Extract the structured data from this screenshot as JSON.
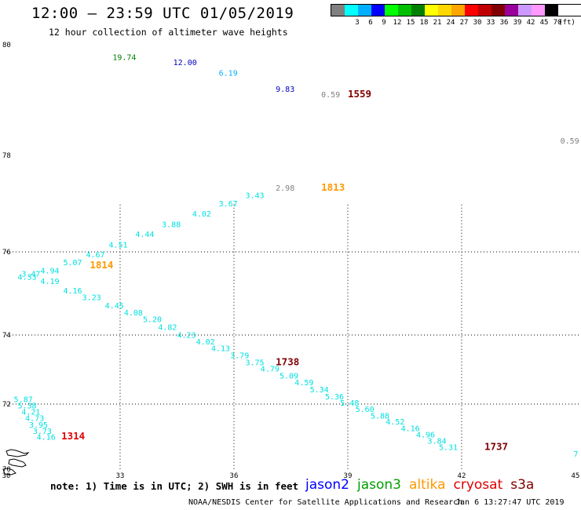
{
  "header": {
    "title": "12:00 – 23:59 UTC 01/05/2019",
    "subtitle": "12 hour collection of altimeter wave heights"
  },
  "legend": {
    "swatches": [
      {
        "color": "#808080",
        "label": ""
      },
      {
        "color": "#00ffff",
        "label": "3"
      },
      {
        "color": "#00b0ff",
        "label": "6"
      },
      {
        "color": "#0000ff",
        "label": "9"
      },
      {
        "color": "#00ff00",
        "label": "12"
      },
      {
        "color": "#00c000",
        "label": "15"
      },
      {
        "color": "#008000",
        "label": "18"
      },
      {
        "color": "#ffff00",
        "label": "21"
      },
      {
        "color": "#ffd700",
        "label": "24"
      },
      {
        "color": "#ffa500",
        "label": "27"
      },
      {
        "color": "#ff0000",
        "label": "30"
      },
      {
        "color": "#c00000",
        "label": "33"
      },
      {
        "color": "#800000",
        "label": "36"
      },
      {
        "color": "#990099",
        "label": "39"
      },
      {
        "color": "#cc99ff",
        "label": "42"
      },
      {
        "color": "#ff99ff",
        "label": "45"
      },
      {
        "color": "#000000",
        "label": "70"
      }
    ],
    "unit": "(ft)"
  },
  "map": {
    "lat_labels": [
      "80",
      "78",
      "76",
      "74",
      "72",
      "70"
    ],
    "lon_labels": [
      "30",
      "33",
      "36",
      "39",
      "42",
      "45"
    ]
  },
  "observations": [
    {
      "v": "19.74",
      "c": "#008000",
      "lat": 79.72,
      "lon": 32.8
    },
    {
      "v": "12.00",
      "c": "#0000c0",
      "lat": 79.63,
      "lon": 34.4
    },
    {
      "v": "6.19",
      "c": "#00b0ff",
      "lat": 79.44,
      "lon": 35.6
    },
    {
      "v": "9.83",
      "c": "#0000c0",
      "lat": 79.15,
      "lon": 37.1
    },
    {
      "v": "0.59",
      "c": "#808080",
      "lat": 79.05,
      "lon": 38.3
    },
    {
      "v": "0.59",
      "c": "#808080",
      "lat": 78.21,
      "lon": 44.6
    },
    {
      "v": "2.98",
      "c": "#808080",
      "lat": 77.27,
      "lon": 37.1
    },
    {
      "v": "3.43",
      "c": "#00e0e0",
      "lat": 77.11,
      "lon": 36.3
    },
    {
      "v": "3.67",
      "c": "#00e0e0",
      "lat": 76.94,
      "lon": 35.6
    },
    {
      "v": "4.02",
      "c": "#00e0e0",
      "lat": 76.73,
      "lon": 34.9
    },
    {
      "v": "3.88",
      "c": "#00e0e0",
      "lat": 76.51,
      "lon": 34.1
    },
    {
      "v": "4.44",
      "c": "#00e0e0",
      "lat": 76.31,
      "lon": 33.4
    },
    {
      "v": "4.51",
      "c": "#00e0e0",
      "lat": 76.09,
      "lon": 32.7
    },
    {
      "v": "4.67",
      "c": "#00e0e0",
      "lat": 75.87,
      "lon": 32.1
    },
    {
      "v": "5.07",
      "c": "#00e0e0",
      "lat": 75.68,
      "lon": 31.5
    },
    {
      "v": "4.94",
      "c": "#00e0e0",
      "lat": 75.48,
      "lon": 30.9
    },
    {
      "v": "3.47",
      "c": "#00e0e0",
      "lat": 75.41,
      "lon": 30.4
    },
    {
      "v": "4.33",
      "c": "#00e0e0",
      "lat": 75.33,
      "lon": 30.3
    },
    {
      "v": "4.19",
      "c": "#00e0e0",
      "lat": 75.23,
      "lon": 30.9
    },
    {
      "v": "4.16",
      "c": "#00e0e0",
      "lat": 75.0,
      "lon": 31.5
    },
    {
      "v": "3.23",
      "c": "#00e0e0",
      "lat": 74.84,
      "lon": 32.0
    },
    {
      "v": "4.45",
      "c": "#00e0e0",
      "lat": 74.64,
      "lon": 32.6
    },
    {
      "v": "4.08",
      "c": "#00e0e0",
      "lat": 74.47,
      "lon": 33.1
    },
    {
      "v": "5.20",
      "c": "#00e0e0",
      "lat": 74.31,
      "lon": 33.6
    },
    {
      "v": "4.82",
      "c": "#00e0e0",
      "lat": 74.12,
      "lon": 34.0
    },
    {
      "v": "4.23",
      "c": "#00e0e0",
      "lat": 73.92,
      "lon": 34.5
    },
    {
      "v": "4.02",
      "c": "#00e0e0",
      "lat": 73.73,
      "lon": 35.0
    },
    {
      "v": "4.13",
      "c": "#00e0e0",
      "lat": 73.53,
      "lon": 35.4
    },
    {
      "v": "3.79",
      "c": "#00e0e0",
      "lat": 73.33,
      "lon": 35.9
    },
    {
      "v": "3.75",
      "c": "#00e0e0",
      "lat": 73.13,
      "lon": 36.3
    },
    {
      "v": "4.79",
      "c": "#00e0e0",
      "lat": 72.94,
      "lon": 36.7
    },
    {
      "v": "5.09",
      "c": "#00e0e0",
      "lat": 72.74,
      "lon": 37.2
    },
    {
      "v": "4.59",
      "c": "#00e0e0",
      "lat": 72.54,
      "lon": 37.6
    },
    {
      "v": "5.34",
      "c": "#00e0e0",
      "lat": 72.34,
      "lon": 38.0
    },
    {
      "v": "5.36",
      "c": "#00e0e0",
      "lat": 72.14,
      "lon": 38.4
    },
    {
      "v": "5.48",
      "c": "#00e0e0",
      "lat": 71.95,
      "lon": 38.8
    },
    {
      "v": "5.60",
      "c": "#00e0e0",
      "lat": 71.76,
      "lon": 39.2
    },
    {
      "v": "5.88",
      "c": "#00e0e0",
      "lat": 71.56,
      "lon": 39.6
    },
    {
      "v": "4.52",
      "c": "#00e0e0",
      "lat": 71.37,
      "lon": 40.0
    },
    {
      "v": "4.16",
      "c": "#00e0e0",
      "lat": 71.17,
      "lon": 40.4
    },
    {
      "v": "4.96",
      "c": "#00e0e0",
      "lat": 70.98,
      "lon": 40.8
    },
    {
      "v": "3.84",
      "c": "#00e0e0",
      "lat": 70.78,
      "lon": 41.1
    },
    {
      "v": "5.31",
      "c": "#00e0e0",
      "lat": 70.59,
      "lon": 41.4
    },
    {
      "v": "7",
      "c": "#00e0e0",
      "lat": 70.38,
      "lon": 44.95
    },
    {
      "v": "5.87",
      "c": "#00e0e0",
      "lat": 72.06,
      "lon": 30.2
    },
    {
      "v": "5.38",
      "c": "#00e0e0",
      "lat": 71.87,
      "lon": 30.3
    },
    {
      "v": "4.21",
      "c": "#00e0e0",
      "lat": 71.68,
      "lon": 30.4
    },
    {
      "v": "4.73",
      "c": "#00e0e0",
      "lat": 71.48,
      "lon": 30.5
    },
    {
      "v": "3.95",
      "c": "#00e0e0",
      "lat": 71.28,
      "lon": 30.6
    },
    {
      "v": "3.73",
      "c": "#00e0e0",
      "lat": 71.09,
      "lon": 30.7
    },
    {
      "v": "4.16",
      "c": "#00e0e0",
      "lat": 70.9,
      "lon": 30.8
    }
  ],
  "track_times": [
    {
      "t": "1559",
      "c": "#800000",
      "lat": 79.05,
      "lon": 39.0
    },
    {
      "t": "1813",
      "c": "#ff9900",
      "lat": 77.27,
      "lon": 38.3
    },
    {
      "t": "1814",
      "c": "#ff9900",
      "lat": 75.6,
      "lon": 32.2
    },
    {
      "t": "1738",
      "c": "#800000",
      "lat": 73.12,
      "lon": 37.1
    },
    {
      "t": "1314",
      "c": "#e00000",
      "lat": 70.91,
      "lon": 31.45
    },
    {
      "t": "1737",
      "c": "#800000",
      "lat": 70.59,
      "lon": 42.6
    }
  ],
  "note": "note: 1) Time is in UTC; 2) SWH is in feet",
  "satellites": [
    {
      "name": "jason2",
      "color": "#0000ff"
    },
    {
      "name": "jason3",
      "color": "#00a000"
    },
    {
      "name": "altika",
      "color": "#ff9900"
    },
    {
      "name": "cryosat",
      "color": "#e00000"
    },
    {
      "name": "s3a",
      "color": "#800000"
    }
  ],
  "footer": {
    "credit": "NOAA/NESDIS Center for Satellite Applications and Research",
    "generated": "Jan  6 13:27:47 UTC 2019"
  }
}
